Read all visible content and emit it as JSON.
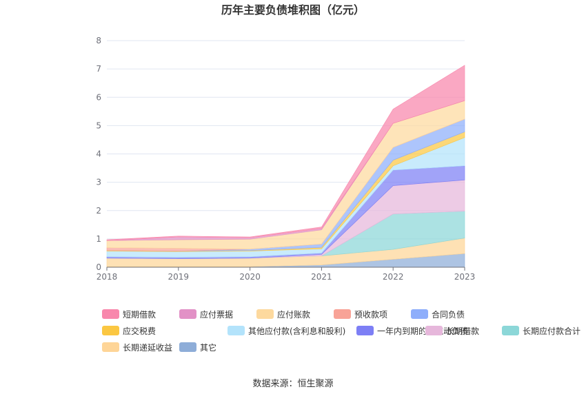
{
  "chart_data": {
    "type": "area",
    "stacked": true,
    "title": "历年主要负债堆积图（亿元）",
    "x": [
      "2018",
      "2019",
      "2020",
      "2021",
      "2022",
      "2023"
    ],
    "ylim": [
      0,
      8
    ],
    "yticks": [
      "0",
      "1",
      "2",
      "3",
      "4",
      "5",
      "6",
      "7",
      "8"
    ],
    "grid": true,
    "legend_position": "bottom",
    "series": [
      {
        "name": "其它",
        "color": "#8eadd8",
        "values": [
          0.02,
          0.02,
          0.02,
          0.08,
          0.28,
          0.48
        ]
      },
      {
        "name": "长期递延收益",
        "color": "#fed597",
        "values": [
          0.3,
          0.28,
          0.3,
          0.32,
          0.35,
          0.55
        ]
      },
      {
        "name": "长期应付款合计",
        "color": "#8cd7d8",
        "values": [
          0.0,
          0.0,
          0.0,
          0.0,
          1.25,
          0.95
        ]
      },
      {
        "name": "长期借款",
        "color": "#e6b7db",
        "values": [
          0.0,
          0.0,
          0.0,
          0.05,
          1.0,
          1.1
        ]
      },
      {
        "name": "一年内到期的非流动负债",
        "color": "#7d7ff5",
        "values": [
          0.05,
          0.05,
          0.05,
          0.05,
          0.55,
          0.5
        ]
      },
      {
        "name": "其他应付款(含利息和股利)",
        "color": "#b3e3fb",
        "values": [
          0.2,
          0.2,
          0.2,
          0.15,
          0.15,
          1.0
        ]
      },
      {
        "name": "应交税费",
        "color": "#fbc742",
        "values": [
          0.02,
          0.02,
          0.02,
          0.05,
          0.2,
          0.2
        ]
      },
      {
        "name": "合同负债",
        "color": "#8eaefb",
        "values": [
          0.0,
          0.0,
          0.05,
          0.12,
          0.45,
          0.45
        ]
      },
      {
        "name": "预收款项",
        "color": "#f8a397",
        "values": [
          0.1,
          0.1,
          0.0,
          0.0,
          0.0,
          0.0
        ]
      },
      {
        "name": "应付账款",
        "color": "#fdd99e",
        "values": [
          0.25,
          0.3,
          0.35,
          0.5,
          0.85,
          0.65
        ]
      },
      {
        "name": "应付票据",
        "color": "#e291c6",
        "values": [
          0.0,
          0.1,
          0.05,
          0.05,
          0.0,
          0.0
        ]
      },
      {
        "name": "短期借款",
        "color": "#f887ac",
        "values": [
          0.03,
          0.03,
          0.03,
          0.05,
          0.5,
          1.25
        ]
      }
    ],
    "legend_order": [
      "短期借款",
      "应付票据",
      "应付账款",
      "预收款项",
      "合同负债",
      "应交税费",
      "其他应付款(含利息和股利)",
      "一年内到期的非流动负债",
      "长期借款",
      "长期应付款合计",
      "长期递延收益",
      "其它"
    ]
  },
  "source": "数据来源：恒生聚源"
}
